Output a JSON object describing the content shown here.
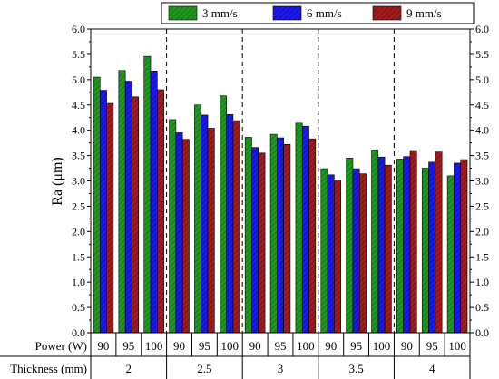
{
  "chart_data": {
    "type": "bar",
    "ylabel": "Ra (μm)",
    "ylim": [
      0,
      6
    ],
    "yticks": [
      "0.0",
      "0.5",
      "1.0",
      "1.5",
      "2.0",
      "2.5",
      "3.0",
      "3.5",
      "4.0",
      "4.5",
      "5.0",
      "5.5",
      "6.0"
    ],
    "grid": false,
    "legend_position": "top-center",
    "row_labels": {
      "power": "Power (W)",
      "thickness": "Thickness (mm)"
    },
    "groups": [
      {
        "thickness": "2",
        "powers": [
          "90",
          "95",
          "100"
        ]
      },
      {
        "thickness": "2.5",
        "powers": [
          "90",
          "95",
          "100"
        ]
      },
      {
        "thickness": "3",
        "powers": [
          "90",
          "95",
          "100"
        ]
      },
      {
        "thickness": "3.5",
        "powers": [
          "90",
          "95",
          "100"
        ]
      },
      {
        "thickness": "4",
        "powers": [
          "90",
          "95",
          "100"
        ]
      }
    ],
    "series": [
      {
        "name": "3 mm/s",
        "color": "#1f9a1f",
        "hatch": "#0d5c0d",
        "values": [
          5.05,
          5.18,
          5.46,
          4.21,
          4.5,
          4.68,
          3.86,
          3.92,
          4.14,
          3.24,
          3.45,
          3.61,
          3.43,
          3.25,
          3.1
        ]
      },
      {
        "name": "6 mm/s",
        "color": "#1a1aee",
        "hatch": "#07078a",
        "values": [
          4.79,
          4.97,
          5.17,
          3.95,
          4.3,
          4.31,
          3.66,
          3.85,
          4.08,
          3.12,
          3.24,
          3.47,
          3.48,
          3.37,
          3.35
        ]
      },
      {
        "name": "9 mm/s",
        "color": "#a31c1c",
        "hatch": "#5e0a0a",
        "values": [
          4.53,
          4.66,
          4.8,
          3.82,
          4.04,
          4.19,
          3.55,
          3.72,
          3.83,
          3.02,
          3.14,
          3.31,
          3.6,
          3.57,
          3.42
        ]
      }
    ]
  }
}
